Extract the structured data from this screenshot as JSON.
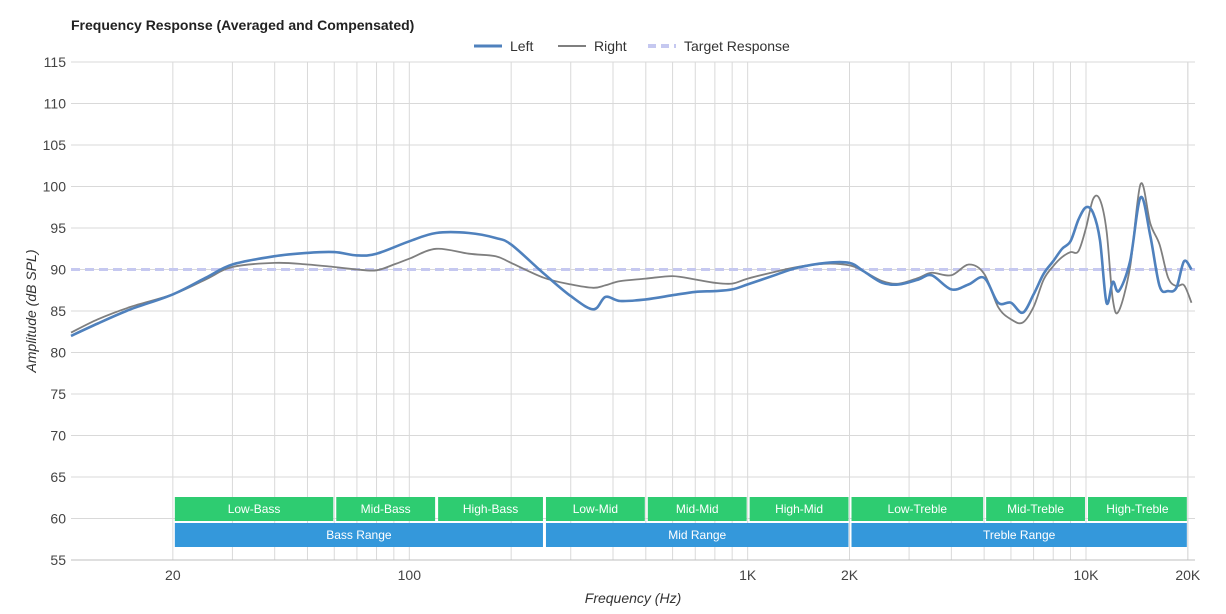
{
  "chart_data": {
    "type": "line",
    "title": "Frequency Response (Averaged and Compensated)",
    "xlabel": "Frequency (Hz)",
    "ylabel": "Amplitude (dB SPL)",
    "x_scale": "log",
    "xlim": [
      10,
      21000
    ],
    "ylim": [
      55,
      115
    ],
    "y_ticks": [
      55,
      60,
      65,
      70,
      75,
      80,
      85,
      90,
      95,
      100,
      105,
      110,
      115
    ],
    "y_tick_labels": [
      "55",
      "60",
      "65",
      "70",
      "75",
      "80",
      "85",
      "90",
      "95",
      "100",
      "105",
      "110",
      "115"
    ],
    "x_ticks": [
      20,
      100,
      1000,
      2000,
      10000,
      20000
    ],
    "x_tick_labels": [
      "20",
      "100",
      "1K",
      "2K",
      "10K",
      "20K"
    ],
    "grid": true,
    "legend": [
      {
        "name": "Left",
        "color": "#4f81bd",
        "style": "solid"
      },
      {
        "name": "Right",
        "color": "#7f7f7f",
        "style": "solid"
      },
      {
        "name": "Target Response",
        "color": "#c5c8f0",
        "style": "dashed"
      }
    ],
    "series": [
      {
        "name": "Left",
        "color": "#4f81bd",
        "points": [
          [
            10,
            82
          ],
          [
            12,
            83.5
          ],
          [
            15,
            85.2
          ],
          [
            20,
            87
          ],
          [
            25,
            89
          ],
          [
            30,
            90.6
          ],
          [
            40,
            91.6
          ],
          [
            50,
            92
          ],
          [
            60,
            92.1
          ],
          [
            70,
            91.7
          ],
          [
            80,
            91.9
          ],
          [
            100,
            93.4
          ],
          [
            120,
            94.4
          ],
          [
            150,
            94.4
          ],
          [
            180,
            93.8
          ],
          [
            200,
            93
          ],
          [
            250,
            89.5
          ],
          [
            300,
            86.8
          ],
          [
            350,
            85.2
          ],
          [
            380,
            86.7
          ],
          [
            420,
            86.2
          ],
          [
            500,
            86.4
          ],
          [
            600,
            86.9
          ],
          [
            700,
            87.3
          ],
          [
            800,
            87.4
          ],
          [
            900,
            87.6
          ],
          [
            1000,
            88.2
          ],
          [
            1200,
            89.3
          ],
          [
            1400,
            90.2
          ],
          [
            1700,
            90.8
          ],
          [
            2000,
            90.8
          ],
          [
            2200,
            89.8
          ],
          [
            2500,
            88.4
          ],
          [
            2800,
            88.2
          ],
          [
            3200,
            88.8
          ],
          [
            3500,
            89.3
          ],
          [
            4000,
            87.6
          ],
          [
            4500,
            88.2
          ],
          [
            5000,
            89
          ],
          [
            5500,
            86
          ],
          [
            6000,
            86
          ],
          [
            6500,
            84.8
          ],
          [
            7000,
            87
          ],
          [
            7500,
            89.5
          ],
          [
            8000,
            91
          ],
          [
            8500,
            92.5
          ],
          [
            9000,
            93.4
          ],
          [
            9500,
            96
          ],
          [
            10000,
            97.5
          ],
          [
            10500,
            96.8
          ],
          [
            11000,
            93.5
          ],
          [
            11500,
            86
          ],
          [
            12000,
            88.5
          ],
          [
            12500,
            87.4
          ],
          [
            13500,
            91
          ],
          [
            14500,
            98.7
          ],
          [
            15500,
            94
          ],
          [
            16500,
            88
          ],
          [
            17500,
            87.4
          ],
          [
            18500,
            87.8
          ],
          [
            19500,
            91
          ],
          [
            20500,
            90
          ]
        ]
      },
      {
        "name": "Right",
        "color": "#7f7f7f",
        "points": [
          [
            10,
            82.4
          ],
          [
            12,
            84
          ],
          [
            15,
            85.5
          ],
          [
            20,
            87
          ],
          [
            25,
            88.8
          ],
          [
            30,
            90.3
          ],
          [
            40,
            90.8
          ],
          [
            50,
            90.6
          ],
          [
            60,
            90.3
          ],
          [
            70,
            90
          ],
          [
            80,
            89.9
          ],
          [
            90,
            90.6
          ],
          [
            100,
            91.3
          ],
          [
            120,
            92.5
          ],
          [
            150,
            91.9
          ],
          [
            180,
            91.6
          ],
          [
            200,
            90.8
          ],
          [
            250,
            89
          ],
          [
            300,
            88.2
          ],
          [
            350,
            87.8
          ],
          [
            380,
            88.1
          ],
          [
            420,
            88.6
          ],
          [
            500,
            88.9
          ],
          [
            600,
            89.2
          ],
          [
            700,
            88.8
          ],
          [
            800,
            88.4
          ],
          [
            900,
            88.3
          ],
          [
            1000,
            88.9
          ],
          [
            1200,
            89.7
          ],
          [
            1400,
            90.3
          ],
          [
            1700,
            90.7
          ],
          [
            2000,
            90.5
          ],
          [
            2200,
            89.8
          ],
          [
            2500,
            88.6
          ],
          [
            2800,
            88.3
          ],
          [
            3200,
            89
          ],
          [
            3500,
            89.6
          ],
          [
            4000,
            89.3
          ],
          [
            4500,
            90.6
          ],
          [
            5000,
            89.5
          ],
          [
            5500,
            85.5
          ],
          [
            6000,
            84
          ],
          [
            6500,
            83.6
          ],
          [
            7000,
            85.5
          ],
          [
            7500,
            88.8
          ],
          [
            8000,
            90.4
          ],
          [
            8500,
            91.5
          ],
          [
            9000,
            92.1
          ],
          [
            9500,
            92.2
          ],
          [
            10000,
            95
          ],
          [
            10500,
            98.5
          ],
          [
            11000,
            98.4
          ],
          [
            11500,
            94.7
          ],
          [
            12000,
            86.4
          ],
          [
            12500,
            85
          ],
          [
            13500,
            90.3
          ],
          [
            14500,
            100.3
          ],
          [
            15500,
            95.5
          ],
          [
            16500,
            93
          ],
          [
            17500,
            89
          ],
          [
            18500,
            88
          ],
          [
            19500,
            88.1
          ],
          [
            20500,
            86
          ]
        ]
      },
      {
        "name": "Target Response",
        "color": "#c5c8f0",
        "dashed": true,
        "points": [
          [
            10,
            90
          ],
          [
            21000,
            90
          ]
        ]
      }
    ],
    "bands": {
      "upper": [
        {
          "label": "Low-Bass",
          "from": 20,
          "to": 60
        },
        {
          "label": "Mid-Bass",
          "from": 60,
          "to": 120
        },
        {
          "label": "High-Bass",
          "from": 120,
          "to": 250
        },
        {
          "label": "Low-Mid",
          "from": 250,
          "to": 500
        },
        {
          "label": "Mid-Mid",
          "from": 500,
          "to": 1000
        },
        {
          "label": "High-Mid",
          "from": 1000,
          "to": 2000
        },
        {
          "label": "Low-Treble",
          "from": 2000,
          "to": 5000
        },
        {
          "label": "Mid-Treble",
          "from": 5000,
          "to": 10000
        },
        {
          "label": "High-Treble",
          "from": 10000,
          "to": 20000
        }
      ],
      "lower": [
        {
          "label": "Bass Range",
          "from": 20,
          "to": 250
        },
        {
          "label": "Mid Range",
          "from": 250,
          "to": 2000
        },
        {
          "label": "Treble Range",
          "from": 2000,
          "to": 20000
        }
      ],
      "upper_color": "#2ecc71",
      "lower_color": "#3498db"
    }
  }
}
